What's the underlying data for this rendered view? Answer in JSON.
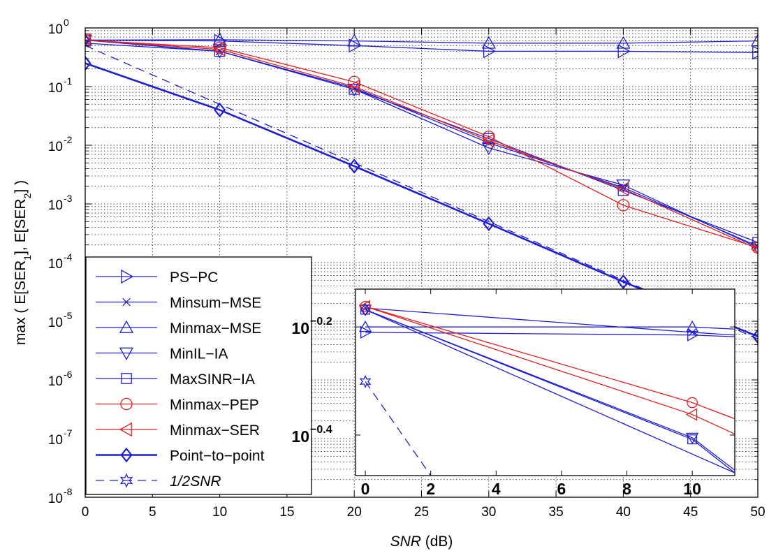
{
  "colors": {
    "blue": "#1f1fd1",
    "red": "#e02020",
    "grid": "#000000",
    "axis": "#000000"
  },
  "chart_data": [
    {
      "type": "line",
      "xlabel": "(dB)",
      "xlabel_italic": "SNR",
      "ylabel": "max ( E[SER1], E[SER2] )",
      "xlim": [
        0,
        50
      ],
      "ylim": [
        1e-08,
        1
      ],
      "yscale": "log",
      "grid": true,
      "legend_position": "bottom-left",
      "x_ticks": [
        "0",
        "5",
        "10",
        "15",
        "20",
        "25",
        "30",
        "35",
        "40",
        "45",
        "50"
      ],
      "y_ticks": [
        {
          "base": "10",
          "exp": "0"
        },
        {
          "base": "10",
          "exp": "-1"
        },
        {
          "base": "10",
          "exp": "-2"
        },
        {
          "base": "10",
          "exp": "-3"
        },
        {
          "base": "10",
          "exp": "-4"
        },
        {
          "base": "10",
          "exp": "-5"
        },
        {
          "base": "10",
          "exp": "-6"
        },
        {
          "base": "10",
          "exp": "-7"
        },
        {
          "base": "10",
          "exp": "-8"
        }
      ],
      "series": [
        {
          "name": "PS−PC",
          "color": "#1f1fd1",
          "marker": "triangle-right",
          "lw": 1.3,
          "dash": "",
          "x": [
            0,
            10,
            20,
            30,
            40,
            50
          ],
          "y": [
            0.62,
            0.6,
            0.5,
            0.4,
            0.4,
            0.38
          ]
        },
        {
          "name": "Minsum−MSE",
          "color": "#1f1fd1",
          "marker": "x",
          "lw": 1.3,
          "dash": "",
          "x": [
            0,
            10,
            20,
            30,
            40,
            50
          ],
          "y": [
            0.55,
            0.4,
            0.095,
            0.011,
            0.0019,
            0.00019
          ]
        },
        {
          "name": "Minmax−MSE",
          "color": "#1f1fd1",
          "marker": "triangle-up",
          "lw": 1.3,
          "dash": "",
          "x": [
            0,
            10,
            20,
            30,
            40,
            50
          ],
          "y": [
            0.62,
            0.63,
            0.6,
            0.55,
            0.55,
            0.6
          ]
        },
        {
          "name": "MinIL−IA",
          "color": "#1f1fd1",
          "marker": "triangle-down",
          "lw": 1.3,
          "dash": "",
          "x": [
            0,
            10,
            20,
            30,
            40,
            50
          ],
          "y": [
            0.62,
            0.4,
            0.09,
            0.009,
            0.0021,
            0.00018
          ]
        },
        {
          "name": "MaxSINR−IA",
          "color": "#1f1fd1",
          "marker": "square",
          "lw": 1.3,
          "dash": "",
          "x": [
            0,
            10,
            20,
            30,
            40,
            50
          ],
          "y": [
            0.62,
            0.4,
            0.09,
            0.013,
            0.0017,
            0.00022
          ]
        },
        {
          "name": "Minmax−PEP",
          "color": "#e02020",
          "marker": "circle",
          "lw": 1.3,
          "dash": "",
          "x": [
            0,
            10,
            20,
            30,
            40,
            50
          ],
          "y": [
            0.62,
            0.46,
            0.12,
            0.014,
            0.00095,
            0.00018
          ]
        },
        {
          "name": "Minmax−SER",
          "color": "#e02020",
          "marker": "triangle-left",
          "lw": 1.3,
          "dash": "",
          "x": [
            0,
            10,
            20,
            30,
            40,
            50
          ],
          "y": [
            0.62,
            0.43,
            0.1,
            0.012,
            0.0018,
            0.00017
          ]
        },
        {
          "name": "Point−to−point",
          "color": "#1f1fd1",
          "marker": "diamond",
          "lw": 2.6,
          "dash": "",
          "x": [
            0,
            10,
            20,
            30,
            40,
            50
          ],
          "y": [
            0.25,
            0.04,
            0.0044,
            0.00046,
            4.7e-05,
            5.5e-06
          ]
        },
        {
          "name": "1/2SNR",
          "color": "#1f1fd1",
          "marker": "star",
          "lw": 1.3,
          "dash": "12,8",
          "italic": true,
          "x": [
            0,
            10,
            20,
            30,
            40,
            50
          ],
          "y": [
            0.5,
            0.05,
            0.005,
            0.0005,
            5e-05,
            5e-06
          ]
        }
      ]
    },
    {
      "type": "line",
      "inset": true,
      "xlim": [
        -0.3,
        11.3
      ],
      "ylim": [
        -0.475,
        -0.13
      ],
      "x_ticks": [
        "0",
        "2",
        "4",
        "6",
        "8",
        "10"
      ],
      "y_ticks": [
        {
          "base": "10",
          "exp": "−0.2",
          "value": -0.2
        },
        {
          "base": "10",
          "exp": "−0.4",
          "value": -0.4
        }
      ],
      "series": [
        {
          "name": "PS−PC",
          "x": [
            0,
            10,
            11.3
          ],
          "y": [
            -0.21,
            -0.215,
            -0.218
          ]
        },
        {
          "name": "Minmax−MSE",
          "x": [
            0,
            10,
            11.3
          ],
          "y": [
            -0.2,
            -0.2,
            -0.204
          ]
        },
        {
          "name": "Minsum−MSE",
          "x": [
            0,
            10,
            11.3
          ],
          "y": [
            -0.165,
            -0.21,
            -0.215
          ]
        },
        {
          "name": "MinIL−IA",
          "x": [
            0,
            10,
            11.3
          ],
          "y": [
            -0.168,
            -0.405,
            -0.465
          ]
        },
        {
          "name": "MaxSINR−IA",
          "x": [
            0,
            10,
            11.3
          ],
          "y": [
            -0.168,
            -0.408,
            -0.47
          ]
        },
        {
          "name": "Minmax−PEP",
          "x": [
            0,
            10,
            11.3
          ],
          "y": [
            -0.162,
            -0.34,
            -0.37
          ]
        },
        {
          "name": "Minmax−SER",
          "x": [
            0,
            10,
            11.3
          ],
          "y": [
            -0.162,
            -0.362,
            -0.398
          ]
        },
        {
          "name": "Point−to−point",
          "x": [
            0,
            11.3
          ],
          "y": [
            -0.168,
            -0.47
          ]
        },
        {
          "name": "1/2SNR",
          "x": [
            0,
            2
          ],
          "y": [
            -0.301,
            -0.475
          ]
        }
      ]
    }
  ]
}
